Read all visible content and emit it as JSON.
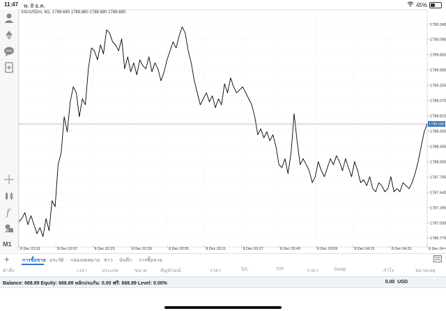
{
  "status_bar": {
    "time": "11:47",
    "date": "พ. 8 ธ.ค.",
    "battery": "45%",
    "battery_level": 0.45,
    "wifi_icon": "wifi-icon"
  },
  "chart": {
    "title": "XAUUSDm, M1, 1788.680 1788.680 1788.680 1788.680",
    "timeframe": "M1",
    "current_price": "1788.680",
    "current_price_color": "#2d6fb7",
    "line_color": "#000000",
    "grid_color": "#dcdcdc"
  },
  "sidebar": {
    "icons": [
      "user-icon",
      "trade-up-down-icon",
      "chat-icon",
      "new-order-icon",
      "crosshair-icon",
      "indicators-icon",
      "function-icon",
      "objects-icon"
    ]
  },
  "chart_data": {
    "type": "line",
    "title": "XAUUSDm, M1, 1788.680 1788.680 1788.680 1788.680",
    "xlabel": "",
    "ylabel": "",
    "x_ticks": [
      "8 Dec 01:51",
      "8 Dec 02:07",
      "8 Dec 02:23",
      "8 Dec 02:39",
      "8 Dec 02:55",
      "8 Dec 03:11",
      "8 Dec 03:27",
      "8 Dec 03:43",
      "8 Dec 03:59",
      "8 Dec 04:15",
      "8 Dec 04:31",
      "8 Dec 04:47"
    ],
    "y_ticks": [
      "1790.345",
      "1790.090",
      "1789.835",
      "1789.580",
      "1789.325",
      "1789.070",
      "1788.815",
      "1788.560",
      "1788.305",
      "1788.050",
      "1787.795",
      "1787.540",
      "1787.285",
      "1787.030",
      "1786.775"
    ],
    "ylim": [
      1786.65,
      1790.47
    ],
    "xlim": [
      0,
      176
    ],
    "current_price": 1788.68,
    "grid": true,
    "series": [
      {
        "values": [
          1787.05,
          1787.1,
          1787.2,
          1787.0,
          1787.15,
          1787.0,
          1786.85,
          1786.95,
          1786.8,
          1787.1,
          1786.9,
          1787.4,
          1787.3,
          1788.0,
          1788.2,
          1788.8,
          1788.55,
          1789.05,
          1789.3,
          1789.2,
          1788.8,
          1789.1,
          1789.0,
          1789.6,
          1789.95,
          1789.9,
          1789.75,
          1790.0,
          1789.85,
          1790.25,
          1790.2,
          1790.05,
          1790.0,
          1789.9,
          1790.1,
          1789.6,
          1789.8,
          1789.55,
          1789.7,
          1789.5,
          1789.75,
          1789.65,
          1789.6,
          1789.8,
          1789.55,
          1789.7,
          1789.6,
          1789.4,
          1789.55,
          1789.75,
          1789.9,
          1790.05,
          1789.95,
          1790.15,
          1790.3,
          1790.2,
          1789.9,
          1789.7,
          1789.4,
          1789.2,
          1789.0,
          1789.1,
          1789.2,
          1789.05,
          1789.15,
          1788.95,
          1789.1,
          1789.0,
          1789.35,
          1789.2,
          1789.45,
          1789.3,
          1789.2,
          1789.25,
          1789.3,
          1789.2,
          1789.1,
          1789.0,
          1788.8,
          1788.5,
          1788.6,
          1788.45,
          1788.55,
          1788.4,
          1788.5,
          1788.3,
          1788.0,
          1787.95,
          1788.1,
          1787.85,
          1788.2,
          1788.85,
          1788.4,
          1788.0,
          1788.1,
          1788.0,
          1787.9,
          1787.7,
          1787.8,
          1788.05,
          1787.9,
          1787.8,
          1787.95,
          1788.1,
          1788.0,
          1788.15,
          1788.05,
          1787.9,
          1788.1,
          1787.95,
          1787.8,
          1788.05,
          1787.9,
          1787.7,
          1787.75,
          1787.65,
          1787.8,
          1787.6,
          1787.55,
          1787.7,
          1787.65,
          1787.55,
          1787.6,
          1787.8,
          1787.55,
          1787.6,
          1787.55,
          1787.7,
          1787.65,
          1787.6,
          1787.7,
          1787.85,
          1788.05,
          1788.3,
          1788.55,
          1788.68
        ]
      }
    ]
  },
  "bottom_tabs": {
    "add": "+",
    "items": [
      "การซื้อขาย",
      "ประวัติ",
      "กล่องจดหมาย",
      "ข่าว",
      "บันทึก",
      "การซื้อขาย"
    ],
    "expand_icon": "expand-icon"
  },
  "columns": [
    "คำสั่ง",
    "เวลา",
    "ประเภท",
    "ขนาด",
    "สัญลักษณ์",
    "ราคา",
    "S/L",
    "T/P",
    "ราคา",
    "Swap",
    "กำไร",
    "หมายเหตุ"
  ],
  "balance": {
    "text": "Balance: 668.89 Equity: 668.89 หลักประกัน: 0.00 ฟรี: 668.89 Level: 0.00%",
    "profit": "0.00",
    "currency": "USD"
  }
}
